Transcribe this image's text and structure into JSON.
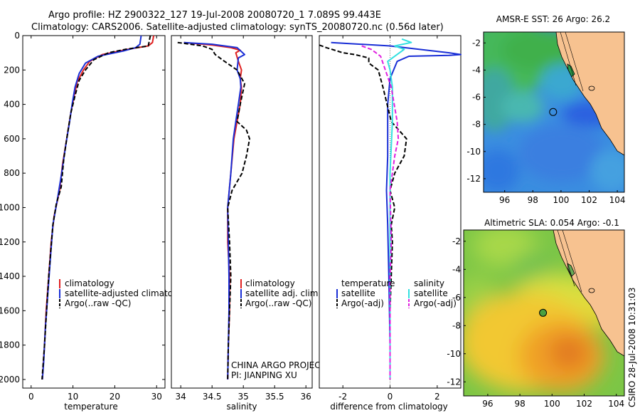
{
  "header": {
    "line1": "Argo profile: HZ 2900322_127 19-Jul-2008 20080720_1 7.089S 99.443E",
    "line2": "Climatology: CARS2006. Satellite-adjusted climatology: synTS_20080720.nc (0.56d later)"
  },
  "side_label": "CSIRO 28-Jul-2008 10:31:03",
  "project": {
    "line1": "CHINA ARGO PROJECT",
    "line2": "PI: JIANPING XU"
  },
  "colors": {
    "climatology": "#e02020",
    "satellite": "#1a2fd6",
    "argo": "#000000",
    "sal_satellite": "#33e0e0",
    "sal_argo": "#e020e0",
    "land": "#f7c290"
  },
  "chart_data": [
    {
      "type": "line",
      "xlabel": "temperature",
      "ylabel": "",
      "xlim": [
        -2,
        32
      ],
      "ylim": [
        0,
        2050
      ],
      "xticks": [
        0,
        10,
        20,
        30
      ],
      "yticks": [
        0,
        200,
        400,
        600,
        800,
        1000,
        1200,
        1400,
        1600,
        1800,
        2000
      ],
      "legend": [
        "climatology",
        "satellite-adjusted climatology",
        "Argo(..raw -QC)"
      ],
      "series": [
        {
          "name": "climatology",
          "style": "solid",
          "color": "#e02020",
          "points": [
            [
              29.3,
              0
            ],
            [
              29,
              40
            ],
            [
              28,
              60
            ],
            [
              23,
              80
            ],
            [
              17,
              110
            ],
            [
              14,
              150
            ],
            [
              12.5,
              200
            ],
            [
              11,
              270
            ],
            [
              10.3,
              350
            ],
            [
              9.5,
              450
            ],
            [
              8.5,
              600
            ],
            [
              7.5,
              750
            ],
            [
              6.8,
              900
            ],
            [
              5.5,
              1050
            ],
            [
              4.8,
              1200
            ],
            [
              4.2,
              1400
            ],
            [
              3.6,
              1600
            ],
            [
              3.2,
              1800
            ],
            [
              2.7,
              2000
            ]
          ]
        },
        {
          "name": "satellite-adjusted climatology",
          "style": "solid",
          "color": "#1a2fd6",
          "points": [
            [
              26.3,
              0
            ],
            [
              26,
              50
            ],
            [
              25,
              70
            ],
            [
              22,
              90
            ],
            [
              16,
              120
            ],
            [
              13,
              160
            ],
            [
              11.5,
              220
            ],
            [
              10.5,
              300
            ],
            [
              9.8,
              400
            ],
            [
              9.2,
              500
            ],
            [
              8.2,
              650
            ],
            [
              7.3,
              800
            ],
            [
              6.3,
              950
            ],
            [
              5.2,
              1100
            ],
            [
              4.6,
              1300
            ],
            [
              4,
              1500
            ],
            [
              3.4,
              1700
            ],
            [
              3,
              1900
            ],
            [
              2.7,
              2000
            ]
          ]
        },
        {
          "name": "Argo(..raw -QC)",
          "style": "dash",
          "color": "#000000",
          "points": [
            [
              28.5,
              0
            ],
            [
              28,
              60
            ],
            [
              22.5,
              80
            ],
            [
              18.5,
              100
            ],
            [
              15,
              140
            ],
            [
              13,
              200
            ],
            [
              11.5,
              260
            ],
            [
              10.5,
              350
            ],
            [
              9.5,
              450
            ],
            [
              8.5,
              600
            ],
            [
              7.8,
              720
            ],
            [
              7.2,
              880
            ],
            [
              6,
              980
            ],
            [
              5.2,
              1100
            ],
            [
              4.7,
              1250
            ],
            [
              4.2,
              1400
            ],
            [
              3.7,
              1600
            ],
            [
              3.2,
              1800
            ],
            [
              2.6,
              2000
            ]
          ]
        }
      ]
    },
    {
      "type": "line",
      "xlabel": "salinity",
      "ylabel": "",
      "xlim": [
        33.85,
        36.1
      ],
      "ylim": [
        0,
        2050
      ],
      "xticks": [
        34,
        34.5,
        35,
        35.5,
        36
      ],
      "yticks": [],
      "legend": [
        "climatology",
        "satellite adj. clim.",
        "Argo(..raw -QC)"
      ],
      "series": [
        {
          "name": "climatology",
          "style": "solid",
          "color": "#e02020",
          "points": [
            [
              34.05,
              40
            ],
            [
              34.5,
              55
            ],
            [
              34.8,
              70
            ],
            [
              34.95,
              85
            ],
            [
              34.88,
              100
            ],
            [
              34.92,
              150
            ],
            [
              34.97,
              200
            ],
            [
              34.95,
              250
            ],
            [
              34.97,
              300
            ],
            [
              34.95,
              400
            ],
            [
              34.9,
              500
            ],
            [
              34.85,
              600
            ],
            [
              34.8,
              800
            ],
            [
              34.75,
              1000
            ],
            [
              34.75,
              1200
            ],
            [
              34.78,
              1400
            ],
            [
              34.78,
              1600
            ],
            [
              34.76,
              1800
            ],
            [
              34.75,
              2000
            ]
          ]
        },
        {
          "name": "satellite adj. clim.",
          "style": "solid",
          "color": "#1a2fd6",
          "points": [
            [
              34.05,
              40
            ],
            [
              34.5,
              50
            ],
            [
              34.9,
              70
            ],
            [
              35.02,
              110
            ],
            [
              34.92,
              130
            ],
            [
              34.9,
              200
            ],
            [
              34.95,
              250
            ],
            [
              34.96,
              300
            ],
            [
              34.92,
              400
            ],
            [
              34.88,
              500
            ],
            [
              34.84,
              600
            ],
            [
              34.8,
              800
            ],
            [
              34.75,
              1000
            ],
            [
              34.76,
              1200
            ],
            [
              34.77,
              1400
            ],
            [
              34.77,
              1600
            ],
            [
              34.76,
              1800
            ],
            [
              34.75,
              2000
            ]
          ]
        },
        {
          "name": "Argo(..raw -QC)",
          "style": "dash",
          "color": "#000000",
          "points": [
            [
              33.95,
              40
            ],
            [
              34.35,
              60
            ],
            [
              34.5,
              80
            ],
            [
              34.55,
              110
            ],
            [
              34.7,
              150
            ],
            [
              34.9,
              200
            ],
            [
              35.02,
              280
            ],
            [
              34.95,
              400
            ],
            [
              34.9,
              500
            ],
            [
              35.05,
              550
            ],
            [
              35.1,
              600
            ],
            [
              35.05,
              700
            ],
            [
              34.98,
              800
            ],
            [
              34.82,
              900
            ],
            [
              34.75,
              1000
            ],
            [
              34.78,
              1200
            ],
            [
              34.8,
              1400
            ],
            [
              34.78,
              1600
            ],
            [
              34.76,
              1800
            ],
            [
              34.75,
              2000
            ]
          ]
        }
      ]
    },
    {
      "type": "line",
      "xlabel": "difference from climatology",
      "ylabel": "",
      "xlim": [
        -3,
        3
      ],
      "ylim": [
        0,
        2050
      ],
      "xticks": [
        -2,
        0,
        2
      ],
      "yticks": [],
      "legend": [
        "temperature",
        "satellite",
        "Argo(-adj)",
        "salinity",
        "satellite",
        "Argo(-adj)"
      ],
      "series": [
        {
          "name": "temperature satellite",
          "style": "solid",
          "color": "#1a2fd6",
          "points": [
            [
              -2.5,
              40
            ],
            [
              0,
              60
            ],
            [
              2.5,
              100
            ],
            [
              3,
              110
            ],
            [
              2.5,
              115
            ],
            [
              0.8,
              120
            ],
            [
              0.3,
              150
            ],
            [
              0,
              250
            ],
            [
              -0.1,
              400
            ],
            [
              -0.1,
              700
            ],
            [
              -0.15,
              900
            ],
            [
              -0.1,
              1100
            ],
            [
              -0.05,
              1400
            ],
            [
              0,
              1800
            ],
            [
              0,
              2000
            ]
          ]
        },
        {
          "name": "temperature Argo(-adj)",
          "style": "dash",
          "color": "#000000",
          "points": [
            [
              -3,
              55
            ],
            [
              -2.7,
              70
            ],
            [
              -2,
              100
            ],
            [
              -1.5,
              110
            ],
            [
              -0.9,
              130
            ],
            [
              -0.9,
              160
            ],
            [
              -0.5,
              200
            ],
            [
              -0.3,
              300
            ],
            [
              0.05,
              500
            ],
            [
              0.7,
              600
            ],
            [
              0.6,
              700
            ],
            [
              0.2,
              800
            ],
            [
              0,
              900
            ],
            [
              0.2,
              1000
            ],
            [
              0.05,
              1100
            ],
            [
              0.1,
              1200
            ],
            [
              0.05,
              1400
            ],
            [
              0,
              1600
            ],
            [
              0,
              2000
            ]
          ]
        },
        {
          "name": "salinity satellite",
          "style": "solid",
          "color": "#33e0e0",
          "points": [
            [
              0.5,
              20
            ],
            [
              0.9,
              40
            ],
            [
              0.2,
              60
            ],
            [
              0.6,
              80
            ],
            [
              0.4,
              100
            ],
            [
              -0.1,
              150
            ],
            [
              0,
              200
            ],
            [
              0.1,
              300
            ],
            [
              0.1,
              500
            ],
            [
              0,
              800
            ],
            [
              0,
              1200
            ],
            [
              0,
              2000
            ]
          ]
        },
        {
          "name": "salinity Argo(-adj)",
          "style": "dash",
          "color": "#e020e0",
          "points": [
            [
              -1.2,
              60
            ],
            [
              -0.8,
              80
            ],
            [
              -0.6,
              100
            ],
            [
              -0.4,
              120
            ],
            [
              -0.2,
              200
            ],
            [
              0.05,
              300
            ],
            [
              0.3,
              500
            ],
            [
              0.35,
              600
            ],
            [
              0.2,
              700
            ],
            [
              0.1,
              800
            ],
            [
              0,
              900
            ],
            [
              0.05,
              1200
            ],
            [
              0,
              1400
            ],
            [
              0,
              2000
            ]
          ]
        }
      ]
    },
    {
      "type": "heatmap",
      "title": "AMSR-E SST: 26 Argo: 26.2",
      "xlim": [
        94.5,
        104.5
      ],
      "ylim": [
        -13,
        -1.2
      ],
      "xticks": [
        96,
        98,
        100,
        102,
        104
      ],
      "yticks": [
        -2,
        -4,
        -6,
        -8,
        -10,
        -12
      ],
      "marker": [
        99.44,
        -7.09
      ]
    },
    {
      "type": "heatmap",
      "title": "Altimetric SLA: 0.054 Argo: -0.1",
      "xlim": [
        94.5,
        104.5
      ],
      "ylim": [
        -13,
        -1.2
      ],
      "xticks": [
        96,
        98,
        100,
        102,
        104
      ],
      "yticks": [
        -2,
        -4,
        -6,
        -8,
        -10,
        -12
      ],
      "marker": [
        99.44,
        -7.09
      ]
    }
  ]
}
